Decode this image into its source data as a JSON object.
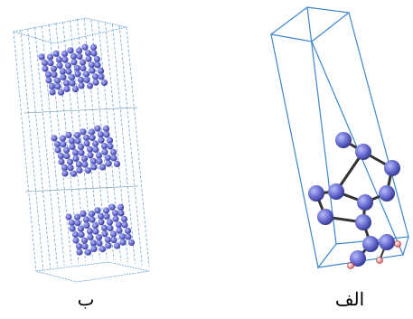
{
  "labels": {
    "left": "ب",
    "right": "الف"
  }
}
